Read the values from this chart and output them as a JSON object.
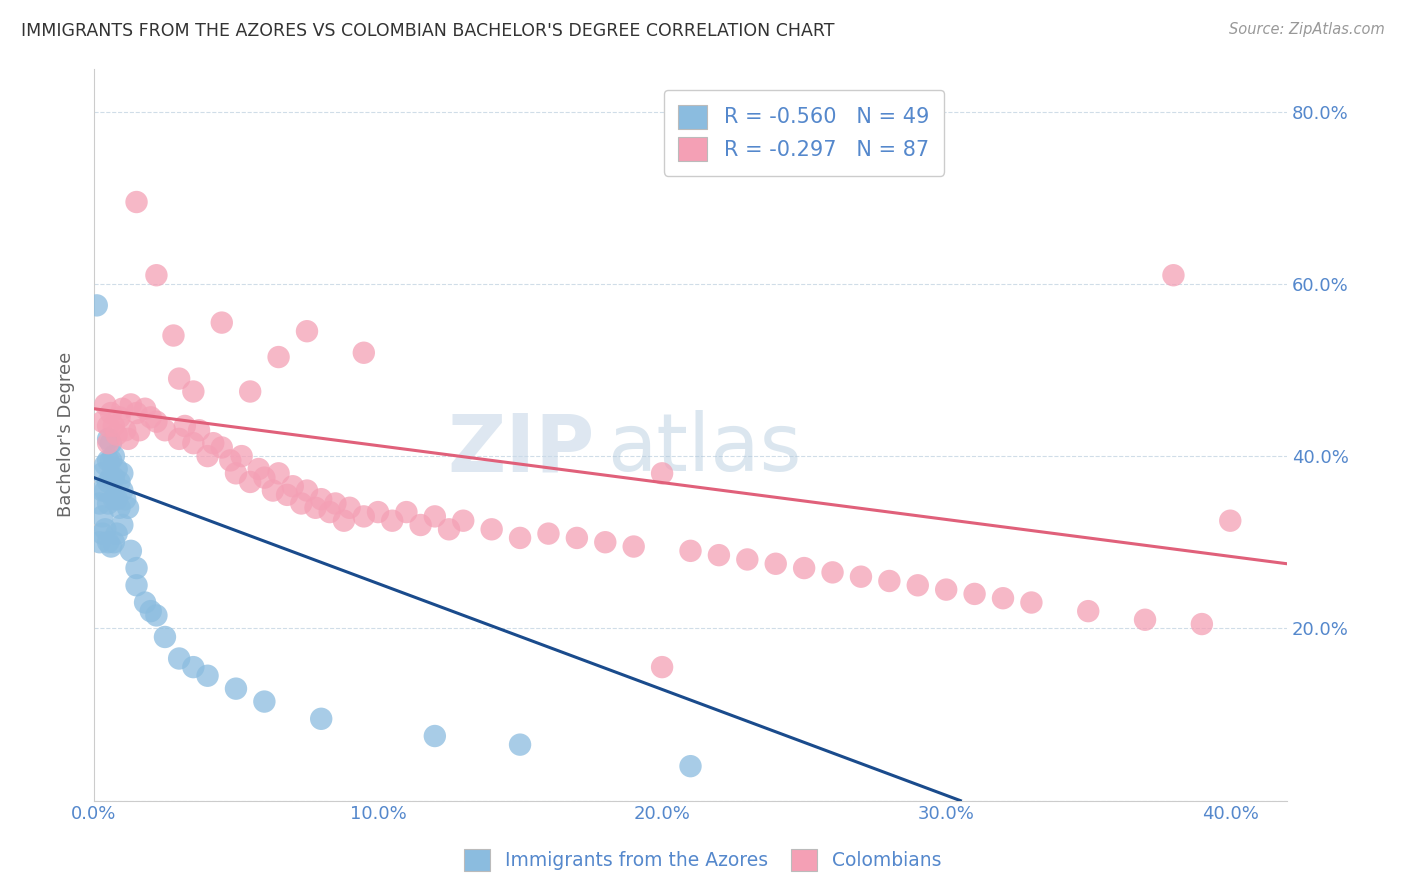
{
  "title": "IMMIGRANTS FROM THE AZORES VS COLOMBIAN BACHELOR'S DEGREE CORRELATION CHART",
  "source": "Source: ZipAtlas.com",
  "ylabel": "Bachelor's Degree",
  "y_ticks": [
    0.0,
    0.2,
    0.4,
    0.6,
    0.8
  ],
  "y_tick_labels": [
    "",
    "20.0%",
    "40.0%",
    "60.0%",
    "80.0%"
  ],
  "x_ticks": [
    0.0,
    0.1,
    0.2,
    0.3,
    0.4
  ],
  "x_tick_labels": [
    "0.0%",
    "10.0%",
    "20.0%",
    "30.0%",
    "40.0%"
  ],
  "x_range": [
    0.0,
    0.42
  ],
  "y_range": [
    0.0,
    0.85
  ],
  "legend_r1": "R = -0.560",
  "legend_n1": "N = 49",
  "legend_r2": "R = -0.297",
  "legend_n2": "N = 87",
  "color_blue": "#8bbcdf",
  "color_pink": "#f4a0b5",
  "line_blue": "#1a4b8c",
  "line_pink": "#e0607a",
  "watermark_zip": "ZIP",
  "watermark_atlas": "atlas",
  "title_color": "#333333",
  "axis_color": "#5588cc",
  "grid_color": "#d0dde8",
  "blue_line_x": [
    0.0,
    0.305
  ],
  "blue_line_y": [
    0.375,
    0.0
  ],
  "pink_line_x": [
    0.0,
    0.42
  ],
  "pink_line_y": [
    0.455,
    0.275
  ],
  "blue_scatter_x": [
    0.001,
    0.002,
    0.002,
    0.003,
    0.003,
    0.003,
    0.003,
    0.004,
    0.004,
    0.004,
    0.005,
    0.005,
    0.005,
    0.005,
    0.005,
    0.006,
    0.006,
    0.006,
    0.006,
    0.007,
    0.007,
    0.007,
    0.007,
    0.008,
    0.008,
    0.008,
    0.009,
    0.009,
    0.01,
    0.01,
    0.01,
    0.011,
    0.012,
    0.013,
    0.015,
    0.015,
    0.018,
    0.02,
    0.022,
    0.025,
    0.03,
    0.035,
    0.04,
    0.05,
    0.06,
    0.08,
    0.12,
    0.15,
    0.21
  ],
  "blue_scatter_y": [
    0.575,
    0.345,
    0.3,
    0.38,
    0.36,
    0.33,
    0.31,
    0.39,
    0.36,
    0.315,
    0.42,
    0.395,
    0.37,
    0.345,
    0.3,
    0.415,
    0.395,
    0.375,
    0.295,
    0.4,
    0.375,
    0.35,
    0.3,
    0.385,
    0.35,
    0.31,
    0.37,
    0.34,
    0.38,
    0.36,
    0.32,
    0.35,
    0.34,
    0.29,
    0.27,
    0.25,
    0.23,
    0.22,
    0.215,
    0.19,
    0.165,
    0.155,
    0.145,
    0.13,
    0.115,
    0.095,
    0.075,
    0.065,
    0.04
  ],
  "pink_scatter_x": [
    0.003,
    0.004,
    0.005,
    0.005,
    0.006,
    0.007,
    0.008,
    0.009,
    0.01,
    0.011,
    0.012,
    0.013,
    0.015,
    0.016,
    0.018,
    0.02,
    0.022,
    0.025,
    0.028,
    0.03,
    0.032,
    0.035,
    0.037,
    0.04,
    0.042,
    0.045,
    0.048,
    0.05,
    0.052,
    0.055,
    0.058,
    0.06,
    0.063,
    0.065,
    0.068,
    0.07,
    0.073,
    0.075,
    0.078,
    0.08,
    0.083,
    0.085,
    0.088,
    0.09,
    0.095,
    0.1,
    0.105,
    0.11,
    0.115,
    0.12,
    0.125,
    0.13,
    0.14,
    0.15,
    0.16,
    0.17,
    0.18,
    0.19,
    0.2,
    0.21,
    0.22,
    0.23,
    0.24,
    0.25,
    0.26,
    0.27,
    0.28,
    0.29,
    0.3,
    0.31,
    0.32,
    0.33,
    0.35,
    0.37,
    0.39,
    0.4,
    0.015,
    0.022,
    0.03,
    0.035,
    0.045,
    0.055,
    0.065,
    0.075,
    0.095,
    0.2,
    0.38
  ],
  "pink_scatter_y": [
    0.44,
    0.46,
    0.435,
    0.415,
    0.45,
    0.435,
    0.425,
    0.445,
    0.455,
    0.43,
    0.42,
    0.46,
    0.45,
    0.43,
    0.455,
    0.445,
    0.44,
    0.43,
    0.54,
    0.42,
    0.435,
    0.415,
    0.43,
    0.4,
    0.415,
    0.41,
    0.395,
    0.38,
    0.4,
    0.37,
    0.385,
    0.375,
    0.36,
    0.38,
    0.355,
    0.365,
    0.345,
    0.36,
    0.34,
    0.35,
    0.335,
    0.345,
    0.325,
    0.34,
    0.33,
    0.335,
    0.325,
    0.335,
    0.32,
    0.33,
    0.315,
    0.325,
    0.315,
    0.305,
    0.31,
    0.305,
    0.3,
    0.295,
    0.38,
    0.29,
    0.285,
    0.28,
    0.275,
    0.27,
    0.265,
    0.26,
    0.255,
    0.25,
    0.245,
    0.24,
    0.235,
    0.23,
    0.22,
    0.21,
    0.205,
    0.325,
    0.695,
    0.61,
    0.49,
    0.475,
    0.555,
    0.475,
    0.515,
    0.545,
    0.52,
    0.155,
    0.61
  ]
}
